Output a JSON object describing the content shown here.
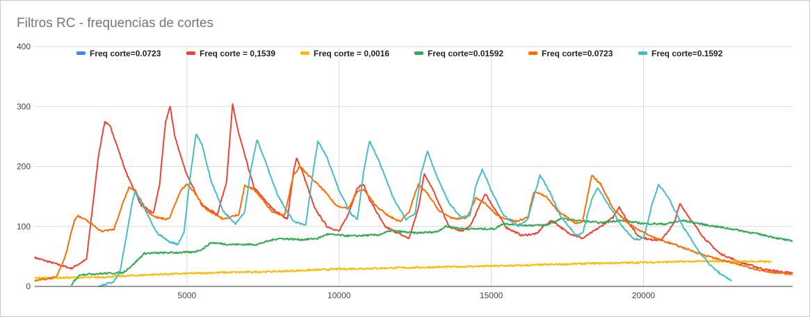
{
  "chart_data": {
    "type": "line",
    "title": "Filtros RC - frequencias de cortes",
    "xlabel": "",
    "ylabel": "",
    "xlim": [
      0,
      24900
    ],
    "ylim": [
      0,
      400
    ],
    "x_ticks": [
      5000,
      10000,
      15000,
      20000
    ],
    "y_ticks": [
      0,
      100,
      200,
      300,
      400
    ],
    "grid": true,
    "legend_position": "top",
    "series": [
      {
        "name": "Freq corte=0.0723",
        "color": "#4285f4",
        "points": []
      },
      {
        "name": "Freq corte = 0,1539",
        "color": "#ea4335",
        "points": [
          [
            0,
            48
          ],
          [
            1200,
            30
          ],
          [
            1700,
            45
          ],
          [
            2100,
            220
          ],
          [
            2300,
            275
          ],
          [
            2500,
            265
          ],
          [
            3000,
            190
          ],
          [
            3500,
            135
          ],
          [
            3900,
            122
          ],
          [
            4100,
            170
          ],
          [
            4300,
            275
          ],
          [
            4450,
            300
          ],
          [
            4600,
            250
          ],
          [
            5000,
            185
          ],
          [
            5500,
            135
          ],
          [
            6000,
            120
          ],
          [
            6300,
            175
          ],
          [
            6500,
            303
          ],
          [
            6700,
            255
          ],
          [
            7200,
            165
          ],
          [
            7800,
            130
          ],
          [
            8300,
            112
          ],
          [
            8500,
            190
          ],
          [
            8600,
            215
          ],
          [
            8800,
            190
          ],
          [
            9200,
            130
          ],
          [
            9600,
            100
          ],
          [
            10000,
            92
          ],
          [
            10300,
            120
          ],
          [
            10600,
            165
          ],
          [
            10800,
            170
          ],
          [
            11000,
            145
          ],
          [
            11500,
            100
          ],
          [
            12000,
            87
          ],
          [
            12300,
            80
          ],
          [
            12600,
            130
          ],
          [
            12800,
            188
          ],
          [
            13100,
            160
          ],
          [
            13600,
            100
          ],
          [
            14000,
            92
          ],
          [
            14300,
            100
          ],
          [
            14800,
            155
          ],
          [
            15100,
            130
          ],
          [
            15500,
            98
          ],
          [
            16000,
            85
          ],
          [
            16500,
            88
          ],
          [
            16700,
            100
          ],
          [
            17000,
            110
          ],
          [
            17500,
            90
          ],
          [
            18000,
            80
          ],
          [
            18600,
            100
          ],
          [
            19000,
            115
          ],
          [
            19200,
            133
          ],
          [
            19400,
            115
          ],
          [
            19800,
            85
          ],
          [
            20200,
            78
          ],
          [
            20600,
            78
          ],
          [
            21000,
            105
          ],
          [
            21200,
            138
          ],
          [
            21500,
            115
          ],
          [
            22000,
            80
          ],
          [
            22500,
            55
          ],
          [
            23200,
            40
          ],
          [
            24000,
            28
          ],
          [
            24900,
            22
          ]
        ]
      },
      {
        "name": "Freq corte = 0,0016",
        "color": "#fbbc04",
        "points": [
          [
            0,
            14
          ],
          [
            2000,
            15
          ],
          [
            4000,
            20
          ],
          [
            6000,
            23
          ],
          [
            8000,
            25
          ],
          [
            10000,
            29
          ],
          [
            12000,
            31
          ],
          [
            14000,
            33
          ],
          [
            16000,
            35
          ],
          [
            18000,
            38
          ],
          [
            20000,
            40
          ],
          [
            21000,
            41
          ],
          [
            22000,
            42
          ],
          [
            23000,
            42
          ],
          [
            24200,
            41
          ]
        ]
      },
      {
        "name": "Freq corte=0.01592",
        "color": "#34a853",
        "points": [
          [
            1200,
            0
          ],
          [
            1300,
            10
          ],
          [
            1500,
            20
          ],
          [
            2500,
            22
          ],
          [
            2900,
            23
          ],
          [
            3200,
            35
          ],
          [
            3600,
            55
          ],
          [
            4200,
            56
          ],
          [
            5200,
            57
          ],
          [
            5500,
            62
          ],
          [
            5800,
            73
          ],
          [
            6400,
            70
          ],
          [
            7300,
            70
          ],
          [
            7700,
            76
          ],
          [
            8000,
            80
          ],
          [
            8800,
            78
          ],
          [
            9300,
            80
          ],
          [
            9600,
            87
          ],
          [
            10400,
            84
          ],
          [
            11300,
            86
          ],
          [
            11700,
            93
          ],
          [
            12500,
            89
          ],
          [
            13200,
            91
          ],
          [
            13500,
            100
          ],
          [
            14100,
            96
          ],
          [
            15100,
            96
          ],
          [
            15400,
            105
          ],
          [
            16100,
            102
          ],
          [
            16800,
            102
          ],
          [
            17300,
            113
          ],
          [
            17800,
            110
          ],
          [
            18600,
            106
          ],
          [
            19200,
            110
          ],
          [
            20000,
            105
          ],
          [
            20700,
            104
          ],
          [
            21300,
            110
          ],
          [
            22000,
            103
          ],
          [
            23000,
            95
          ],
          [
            24000,
            85
          ],
          [
            24900,
            75
          ]
        ]
      },
      {
        "name": "Freq corte=0.0723",
        "color": "#ff6d01",
        "points": [
          [
            0,
            10
          ],
          [
            700,
            15
          ],
          [
            1000,
            50
          ],
          [
            1300,
            110
          ],
          [
            1400,
            118
          ],
          [
            1700,
            110
          ],
          [
            2200,
            92
          ],
          [
            2600,
            95
          ],
          [
            2900,
            140
          ],
          [
            3100,
            165
          ],
          [
            3300,
            160
          ],
          [
            3700,
            125
          ],
          [
            4000,
            115
          ],
          [
            4400,
            112
          ],
          [
            4800,
            160
          ],
          [
            5000,
            170
          ],
          [
            5200,
            160
          ],
          [
            5600,
            130
          ],
          [
            6200,
            112
          ],
          [
            6700,
            120
          ],
          [
            6900,
            168
          ],
          [
            7200,
            162
          ],
          [
            7800,
            125
          ],
          [
            8200,
            118
          ],
          [
            8500,
            185
          ],
          [
            8700,
            200
          ],
          [
            9000,
            185
          ],
          [
            9500,
            160
          ],
          [
            9900,
            135
          ],
          [
            10300,
            130
          ],
          [
            10600,
            158
          ],
          [
            10800,
            162
          ],
          [
            11200,
            135
          ],
          [
            11600,
            118
          ],
          [
            12000,
            108
          ],
          [
            12300,
            125
          ],
          [
            12600,
            170
          ],
          [
            12900,
            155
          ],
          [
            13300,
            125
          ],
          [
            13800,
            112
          ],
          [
            14200,
            115
          ],
          [
            14500,
            148
          ],
          [
            14800,
            138
          ],
          [
            15200,
            118
          ],
          [
            15800,
            108
          ],
          [
            16200,
            115
          ],
          [
            16400,
            158
          ],
          [
            16800,
            150
          ],
          [
            17200,
            125
          ],
          [
            17800,
            105
          ],
          [
            18000,
            108
          ],
          [
            18300,
            185
          ],
          [
            18600,
            170
          ],
          [
            19000,
            130
          ],
          [
            19500,
            105
          ],
          [
            20000,
            90
          ],
          [
            20400,
            80
          ],
          [
            21000,
            70
          ],
          [
            22000,
            52
          ],
          [
            23000,
            38
          ],
          [
            24000,
            25
          ],
          [
            24900,
            20
          ]
        ]
      },
      {
        "name": "Freq corte=0.1592",
        "color": "#46bdc6",
        "points": [
          [
            2100,
            0
          ],
          [
            2600,
            8
          ],
          [
            2800,
            25
          ],
          [
            3000,
            80
          ],
          [
            3200,
            140
          ],
          [
            3300,
            158
          ],
          [
            3600,
            130
          ],
          [
            4000,
            90
          ],
          [
            4400,
            75
          ],
          [
            4700,
            70
          ],
          [
            4900,
            90
          ],
          [
            5100,
            180
          ],
          [
            5300,
            255
          ],
          [
            5500,
            235
          ],
          [
            5800,
            175
          ],
          [
            6200,
            125
          ],
          [
            6600,
            105
          ],
          [
            6900,
            125
          ],
          [
            7100,
            195
          ],
          [
            7300,
            245
          ],
          [
            7600,
            205
          ],
          [
            8000,
            150
          ],
          [
            8500,
            108
          ],
          [
            8900,
            102
          ],
          [
            9100,
            175
          ],
          [
            9300,
            242
          ],
          [
            9600,
            215
          ],
          [
            10000,
            160
          ],
          [
            10400,
            120
          ],
          [
            10600,
            112
          ],
          [
            10800,
            190
          ],
          [
            11000,
            243
          ],
          [
            11300,
            210
          ],
          [
            11800,
            145
          ],
          [
            12200,
            112
          ],
          [
            12500,
            122
          ],
          [
            12700,
            190
          ],
          [
            12900,
            225
          ],
          [
            13200,
            185
          ],
          [
            13600,
            140
          ],
          [
            14000,
            115
          ],
          [
            14300,
            118
          ],
          [
            14500,
            170
          ],
          [
            14700,
            195
          ],
          [
            15000,
            160
          ],
          [
            15400,
            118
          ],
          [
            15900,
            100
          ],
          [
            16200,
            112
          ],
          [
            16400,
            150
          ],
          [
            16600,
            185
          ],
          [
            16900,
            160
          ],
          [
            17300,
            115
          ],
          [
            17800,
            85
          ],
          [
            18000,
            88
          ],
          [
            18300,
            145
          ],
          [
            18500,
            165
          ],
          [
            18800,
            140
          ],
          [
            19300,
            100
          ],
          [
            19700,
            78
          ],
          [
            20000,
            80
          ],
          [
            20300,
            140
          ],
          [
            20500,
            170
          ],
          [
            20800,
            150
          ],
          [
            21300,
            100
          ],
          [
            21800,
            60
          ],
          [
            22200,
            35
          ],
          [
            22600,
            18
          ],
          [
            22900,
            10
          ]
        ]
      }
    ]
  }
}
